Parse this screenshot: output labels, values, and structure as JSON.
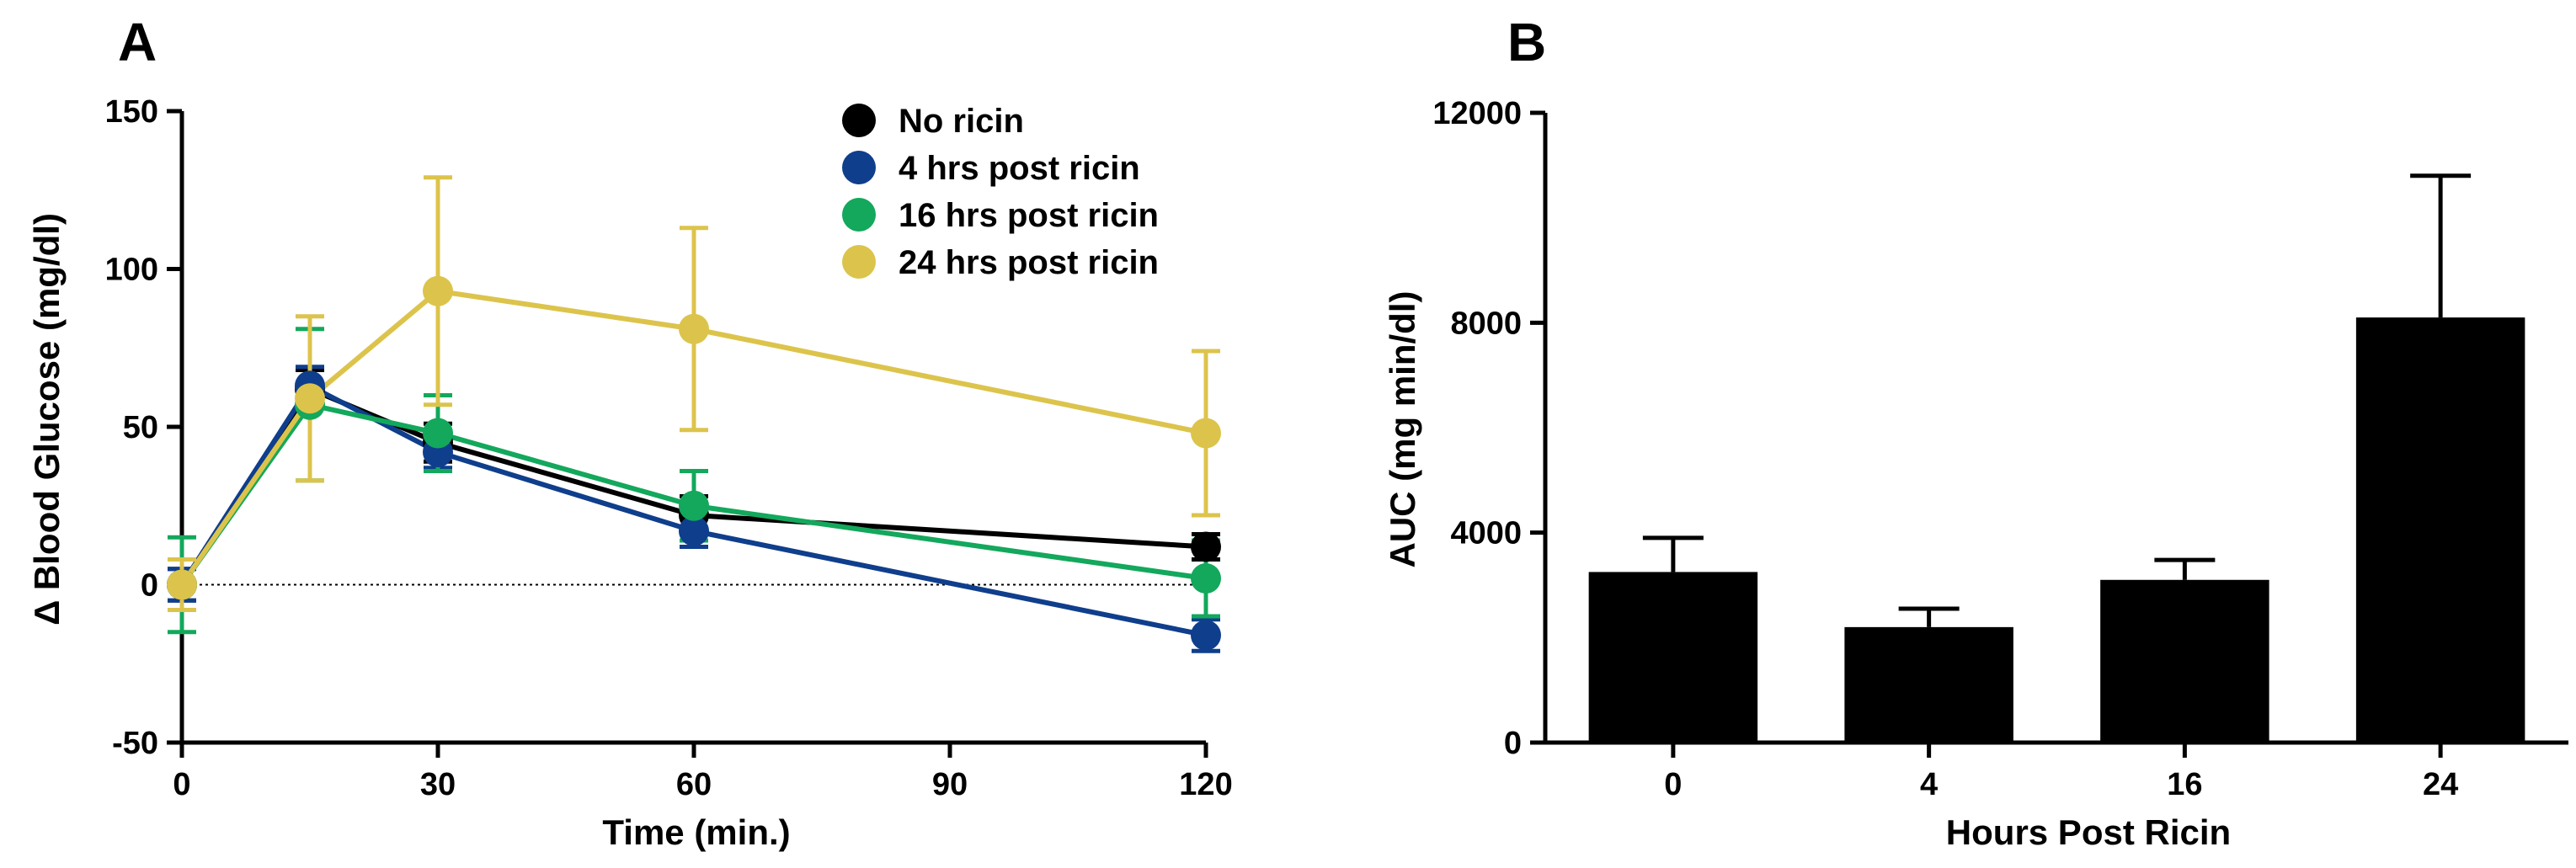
{
  "chart_data": [
    {
      "panel_label": "A",
      "type": "line",
      "xlabel": "Time (min.)",
      "ylabel": "Δ Blood Glucose (mg/dl)",
      "xlim": [
        0,
        120
      ],
      "ylim": [
        -50,
        150
      ],
      "xticks": [
        0,
        30,
        60,
        90,
        120
      ],
      "yticks": [
        -50,
        0,
        50,
        100,
        150
      ],
      "reference_line_y": 0,
      "legend_position": "top-right",
      "series": [
        {
          "name": "No ricin",
          "color": "#000000",
          "x": [
            0,
            15,
            30,
            60,
            120
          ],
          "y": [
            0,
            62,
            45,
            22,
            12
          ],
          "err": [
            5,
            6,
            6,
            6,
            4
          ]
        },
        {
          "name": "4 hrs post ricin",
          "color": "#0f3e8c",
          "x": [
            0,
            15,
            30,
            60,
            120
          ],
          "y": [
            0,
            63,
            42,
            17,
            -16
          ],
          "err": [
            5,
            6,
            5,
            5,
            5
          ]
        },
        {
          "name": "16 hrs post ricin",
          "color": "#13a85c",
          "x": [
            0,
            15,
            30,
            60,
            120
          ],
          "y": [
            0,
            57,
            48,
            25,
            2
          ],
          "err": [
            15,
            24,
            12,
            11,
            12
          ]
        },
        {
          "name": "24 hrs post ricin",
          "color": "#dcc44c",
          "x": [
            0,
            15,
            30,
            60,
            120
          ],
          "y": [
            0,
            59,
            93,
            81,
            48
          ],
          "err": [
            8,
            26,
            36,
            32,
            26
          ]
        }
      ]
    },
    {
      "panel_label": "B",
      "type": "bar",
      "xlabel": "Hours Post Ricin",
      "ylabel": "AUC (mg min/dl)",
      "ylim": [
        0,
        12000
      ],
      "yticks": [
        0,
        4000,
        8000,
        12000
      ],
      "categories": [
        "0",
        "4",
        "16",
        "24"
      ],
      "values": [
        3250,
        2200,
        3100,
        8100
      ],
      "err": [
        650,
        350,
        380,
        2700
      ],
      "color": "#000000"
    }
  ]
}
